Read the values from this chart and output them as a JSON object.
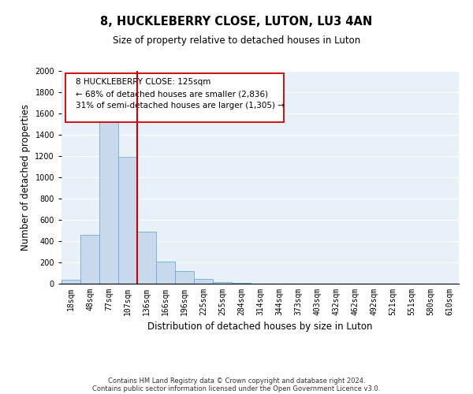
{
  "title": "8, HUCKLEBERRY CLOSE, LUTON, LU3 4AN",
  "subtitle": "Size of property relative to detached houses in Luton",
  "xlabel": "Distribution of detached houses by size in Luton",
  "ylabel": "Number of detached properties",
  "footnote1": "Contains HM Land Registry data © Crown copyright and database right 2024.",
  "footnote2": "Contains public sector information licensed under the Open Government Licence v3.0.",
  "bin_labels": [
    "18sqm",
    "48sqm",
    "77sqm",
    "107sqm",
    "136sqm",
    "166sqm",
    "196sqm",
    "225sqm",
    "255sqm",
    "284sqm",
    "314sqm",
    "344sqm",
    "373sqm",
    "403sqm",
    "432sqm",
    "462sqm",
    "492sqm",
    "521sqm",
    "551sqm",
    "580sqm",
    "610sqm"
  ],
  "bar_values": [
    35,
    460,
    1600,
    1190,
    490,
    210,
    115,
    45,
    18,
    5,
    0,
    0,
    0,
    0,
    0,
    0,
    0,
    0,
    0,
    0,
    0
  ],
  "bar_color": "#c8d9ee",
  "bar_edge_color": "#6baed6",
  "vline_color": "#cc0000",
  "ylim": [
    0,
    2000
  ],
  "yticks": [
    0,
    200,
    400,
    600,
    800,
    1000,
    1200,
    1400,
    1600,
    1800,
    2000
  ],
  "bg_color": "#e8f0f8",
  "grid_color": "#ffffff",
  "title_fontsize": 10.5,
  "subtitle_fontsize": 8.5,
  "axis_label_fontsize": 8.5,
  "tick_fontsize": 7,
  "footnote_fontsize": 6
}
